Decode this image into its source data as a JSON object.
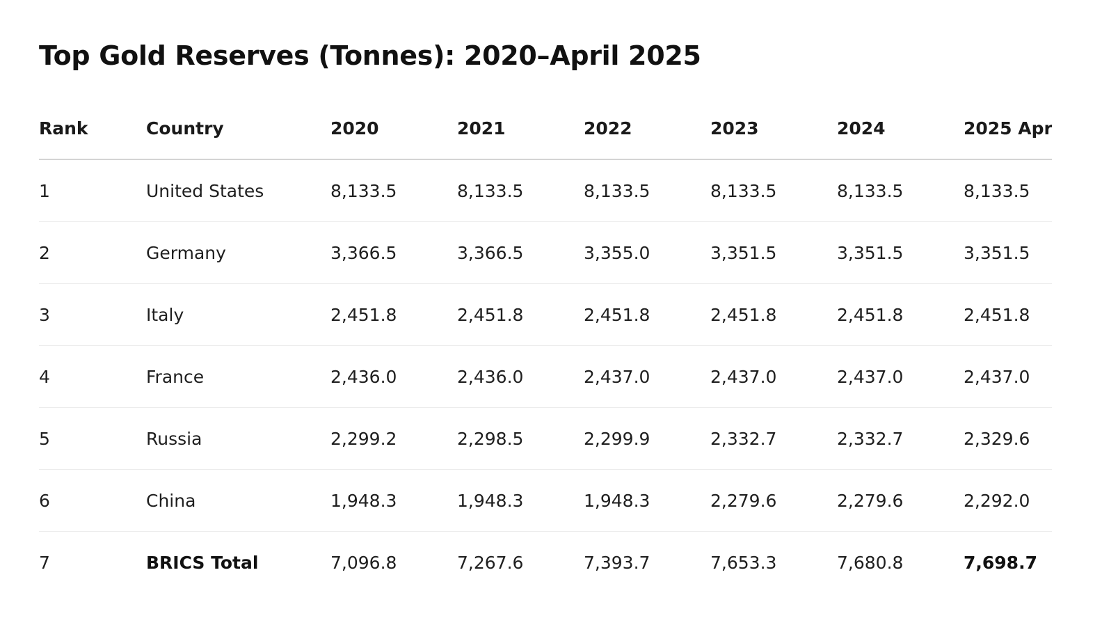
{
  "title": "Top Gold Reserves (Tonnes): 2020–April 2025",
  "table": {
    "headers": [
      "Rank",
      "Country",
      "2020",
      "2021",
      "2022",
      "2023",
      "2024",
      "2025 Apr"
    ],
    "rows": [
      {
        "rank": "1",
        "country": "United States",
        "values": [
          "8,133.5",
          "8,133.5",
          "8,133.5",
          "8,133.5",
          "8,133.5",
          "8,133.5"
        ]
      },
      {
        "rank": "2",
        "country": "Germany",
        "values": [
          "3,366.5",
          "3,366.5",
          "3,355.0",
          "3,351.5",
          "3,351.5",
          "3,351.5"
        ]
      },
      {
        "rank": "3",
        "country": "Italy",
        "values": [
          "2,451.8",
          "2,451.8",
          "2,451.8",
          "2,451.8",
          "2,451.8",
          "2,451.8"
        ]
      },
      {
        "rank": "4",
        "country": "France",
        "values": [
          "2,436.0",
          "2,436.0",
          "2,437.0",
          "2,437.0",
          "2,437.0",
          "2,437.0"
        ]
      },
      {
        "rank": "5",
        "country": "Russia",
        "values": [
          "2,299.2",
          "2,298.5",
          "2,299.9",
          "2,332.7",
          "2,332.7",
          "2,329.6"
        ]
      },
      {
        "rank": "6",
        "country": "China",
        "values": [
          "1,948.3",
          "1,948.3",
          "1,948.3",
          "2,279.6",
          "2,279.6",
          "2,292.0"
        ]
      },
      {
        "rank": "7",
        "country": "BRICS Total",
        "values": [
          "7,096.8",
          "7,267.6",
          "7,393.7",
          "7,653.3",
          "7,680.8",
          "7,698.7"
        ]
      }
    ]
  }
}
